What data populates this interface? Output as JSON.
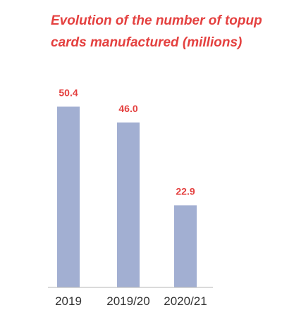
{
  "chart_data": {
    "type": "bar",
    "title": "Evolution of the number of topup cards manufactured (millions)",
    "categories": [
      "2019",
      "2019/20",
      "2020/21"
    ],
    "values": [
      50.4,
      46.0,
      22.9
    ],
    "value_labels": [
      "50.4",
      "46.0",
      "22.9"
    ],
    "xlabel": "",
    "ylabel": "",
    "ylim": [
      0,
      55
    ],
    "grid": false,
    "legend": "none"
  },
  "colors": {
    "bar": "#a2afd2",
    "value_label": "#e4403f",
    "title": "#e4403f",
    "axis": "#b5b5b5"
  }
}
